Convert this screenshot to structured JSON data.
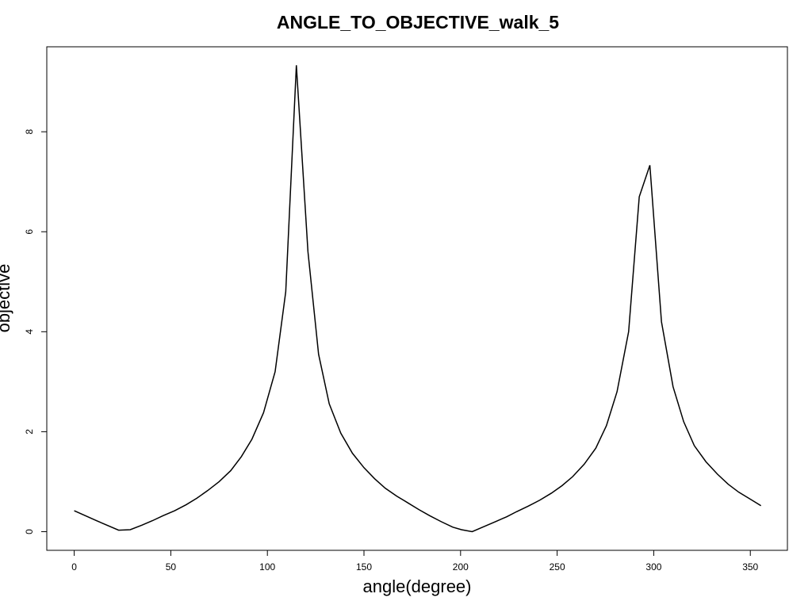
{
  "chart_data": {
    "type": "line",
    "title": "ANGLE_TO_OBJECTIVE_walk_5",
    "x_label": "angle(degree)",
    "y_label": "objective",
    "x": [
      0,
      11.5,
      23,
      29,
      35,
      40.5,
      46,
      52,
      58,
      63.5,
      69,
      75,
      81,
      86.5,
      92,
      98,
      104,
      109.5,
      115,
      121,
      126.5,
      132,
      138,
      144,
      150,
      155.5,
      161,
      167,
      173,
      178.5,
      184,
      190,
      196,
      200.5,
      206,
      212,
      218,
      224,
      229,
      235,
      241,
      247,
      252.5,
      258,
      264,
      270,
      275.5,
      281,
      287,
      292.5,
      298,
      304,
      310,
      315.5,
      321,
      327,
      333,
      338.5,
      344,
      350,
      355.5
    ],
    "series": [
      {
        "name": "objective",
        "color": "#000000",
        "values": [
          0.42,
          0.22,
          0.03,
          0.04,
          0.13,
          0.22,
          0.32,
          0.42,
          0.54,
          0.67,
          0.82,
          1.0,
          1.22,
          1.5,
          1.85,
          2.38,
          3.2,
          4.8,
          9.33,
          5.6,
          3.55,
          2.56,
          1.97,
          1.57,
          1.28,
          1.06,
          0.87,
          0.71,
          0.57,
          0.44,
          0.32,
          0.2,
          0.09,
          0.04,
          0.0,
          0.1,
          0.2,
          0.3,
          0.4,
          0.51,
          0.63,
          0.77,
          0.92,
          1.1,
          1.35,
          1.67,
          2.12,
          2.8,
          4.0,
          6.7,
          7.33,
          4.2,
          2.9,
          2.2,
          1.72,
          1.4,
          1.15,
          0.95,
          0.79,
          0.65,
          0.52
        ]
      }
    ],
    "xlim": [
      -14.2,
      369.2
    ],
    "ylim": [
      -0.373,
      9.7
    ],
    "xticks": [
      0,
      50,
      100,
      150,
      200,
      250,
      300,
      350
    ],
    "yticks": [
      0,
      2,
      4,
      6,
      8
    ]
  }
}
